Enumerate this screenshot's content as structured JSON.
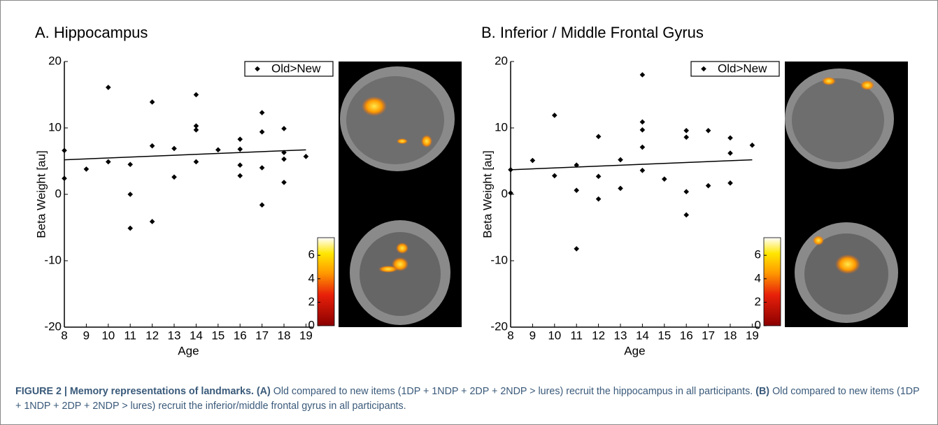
{
  "chart_data": [
    {
      "type": "scatter",
      "title": "A. Hippocampus",
      "xlabel": "Age",
      "ylabel": "Beta Weight [au]",
      "xlim": [
        8,
        19.3
      ],
      "ylim": [
        -20,
        20
      ],
      "xticks": [
        8,
        9,
        10,
        11,
        12,
        13,
        14,
        15,
        16,
        17,
        18,
        19
      ],
      "yticks": [
        -20,
        -10,
        0,
        10,
        20
      ],
      "legend": "upper right",
      "series": [
        {
          "name": "Old>New",
          "color": "#000000",
          "x": [
            8,
            8,
            9,
            10,
            10,
            11,
            11,
            11,
            12,
            12,
            12,
            13,
            13,
            14,
            14,
            14,
            14,
            15,
            16,
            16,
            16,
            16,
            17,
            17,
            17,
            17,
            18,
            18,
            18,
            18,
            19
          ],
          "values": [
            6.6,
            2.4,
            3.8,
            16.1,
            4.9,
            4.5,
            0,
            -5.1,
            13.9,
            7.3,
            -4.1,
            6.9,
            2.6,
            15.0,
            10.3,
            9.7,
            4.9,
            6.7,
            8.3,
            6.8,
            4.4,
            2.8,
            12.3,
            9.4,
            4.0,
            -1.6,
            9.9,
            6.3,
            5.3,
            1.8,
            5.7
          ]
        }
      ],
      "fit": {
        "x": [
          8,
          19
        ],
        "values": [
          5.2,
          6.7
        ]
      },
      "colorbar": {
        "lim": [
          0,
          7.5
        ],
        "ticks": [
          0,
          2,
          4,
          6
        ]
      }
    },
    {
      "type": "scatter",
      "title": "B. Inferior / Middle Frontal Gyrus",
      "xlabel": "Age",
      "ylabel": "Beta Weight [au]",
      "xlim": [
        8,
        19.3
      ],
      "ylim": [
        -20,
        20
      ],
      "xticks": [
        8,
        9,
        10,
        11,
        12,
        13,
        14,
        15,
        16,
        17,
        18,
        19
      ],
      "yticks": [
        -20,
        -10,
        0,
        10,
        20
      ],
      "legend": "upper right",
      "series": [
        {
          "name": "Old>New",
          "color": "#000000",
          "x": [
            8,
            8,
            9,
            10,
            10,
            11,
            11,
            11,
            12,
            12,
            12,
            13,
            13,
            14,
            14,
            14,
            14,
            14,
            15,
            16,
            16,
            16,
            16,
            17,
            17,
            18,
            18,
            18,
            19
          ],
          "values": [
            3.7,
            0.2,
            5.1,
            11.9,
            2.8,
            4.4,
            0.6,
            -8.2,
            8.7,
            2.7,
            -0.7,
            5.2,
            0.9,
            18.0,
            10.9,
            9.7,
            7.1,
            3.6,
            2.3,
            9.6,
            8.6,
            0.4,
            -3.1,
            9.6,
            1.3,
            8.5,
            6.2,
            1.7,
            7.4
          ]
        }
      ],
      "fit": {
        "x": [
          8,
          19
        ],
        "values": [
          3.7,
          5.2
        ]
      },
      "colorbar": {
        "lim": [
          0,
          7.5
        ],
        "ticks": [
          0,
          2,
          4,
          6
        ]
      }
    }
  ],
  "caption": {
    "label": "FIGURE 2 | Memory representations of landmarks.",
    "items": [
      {
        "tag": "(A)",
        "text": "Old compared to new items (1DP + 1NDP + 2DP + 2NDP > lures) recruit the hippocampus in all participants."
      },
      {
        "tag": "(B)",
        "text": "Old compared to new items (1DP + 1NDP + 2DP + 2NDP > lures) recruit the inferior/middle frontal gyrus in all participants."
      }
    ]
  }
}
